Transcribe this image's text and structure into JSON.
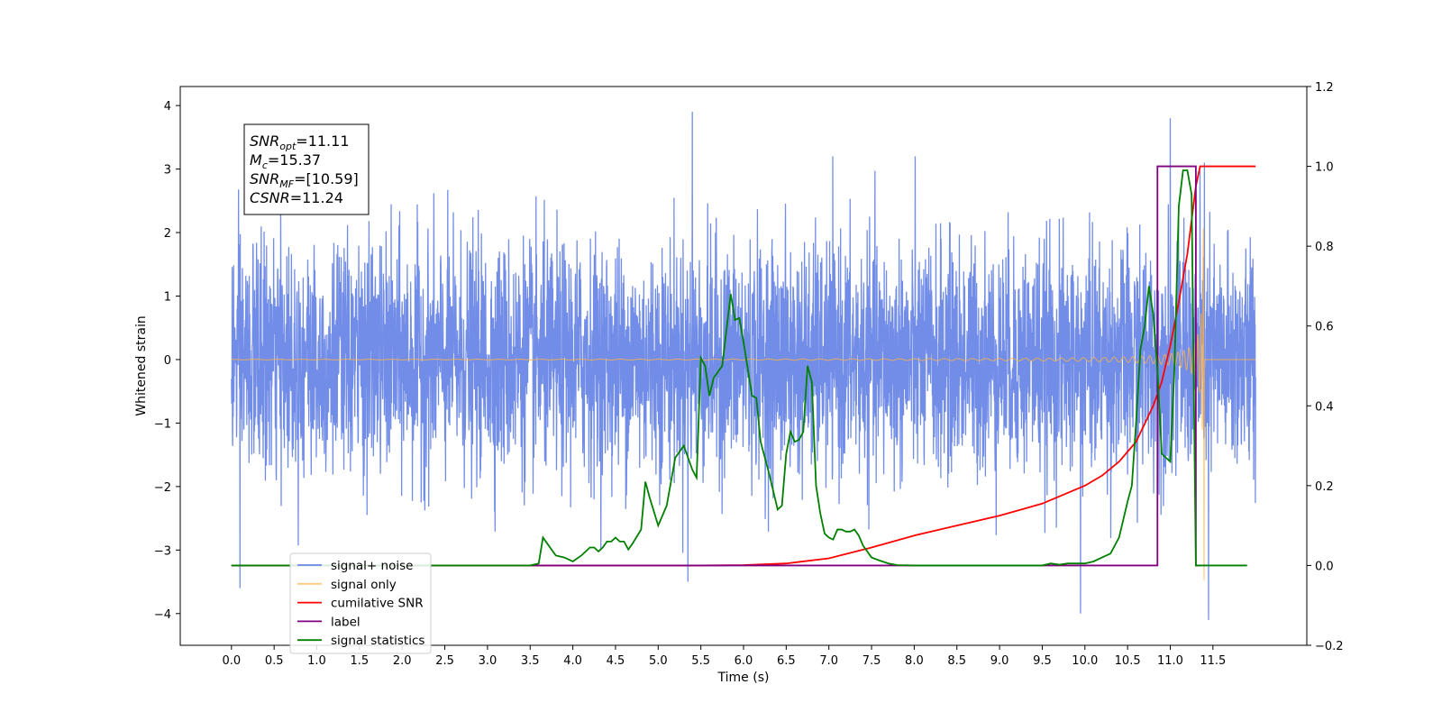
{
  "chart_data": {
    "type": "line",
    "xlabel": "Time (s)",
    "ylabel": "Whitened strain",
    "xlim": [
      -0.6,
      12.6
    ],
    "ylim": [
      -4.5,
      4.3
    ],
    "ylim_right": [
      -0.2,
      1.2
    ],
    "x_ticks": [
      "0.0",
      "0.5",
      "1.0",
      "1.5",
      "2.0",
      "2.5",
      "3.0",
      "3.5",
      "4.0",
      "4.5",
      "5.0",
      "5.5",
      "6.0",
      "6.5",
      "7.0",
      "7.5",
      "8.0",
      "8.5",
      "9.0",
      "9.5",
      "10.0",
      "10.5",
      "11.0",
      "11.5"
    ],
    "y_ticks_left": [
      "4",
      "3",
      "2",
      "1",
      "0",
      "−1",
      "−2",
      "−3",
      "−4"
    ],
    "y_ticks_right": [
      "1.2",
      "1.0",
      "0.8",
      "0.6",
      "0.4",
      "0.2",
      "0.0",
      "−0.2"
    ],
    "grid": false,
    "legend_placement": "lower-left",
    "annotation": [
      {
        "base": "SNR",
        "sub": "opt",
        "value": "=11.11"
      },
      {
        "base": "M",
        "sub": "c",
        "value": "=15.37"
      },
      {
        "base": "SNR",
        "sub": "MF",
        "value": "=[10.59]"
      },
      {
        "base": "CSNR",
        "sub": "",
        "value": "=11.24"
      }
    ],
    "series": [
      {
        "name": "signal+ noise",
        "axis": "left",
        "color": "#6a87e6",
        "style": "noise",
        "x_range": [
          0,
          12.0
        ],
        "std": 0.9,
        "notable_peaks": [
          [
            5.4,
            3.9
          ],
          [
            11.0,
            3.8
          ],
          [
            11.4,
            3.1
          ],
          [
            11.45,
            -4.1
          ],
          [
            9.95,
            -4.0
          ],
          [
            0.1,
            -3.6
          ],
          [
            5.35,
            -3.5
          ]
        ]
      },
      {
        "name": "signal only",
        "axis": "left",
        "color": "#ffb347",
        "style": "chirp",
        "x_range": [
          0,
          12.0
        ],
        "t_merger": 11.4
      },
      {
        "name": "cumilative SNR",
        "axis": "right",
        "color": "#ff0000",
        "x": [
          0,
          5.5,
          6.0,
          6.5,
          7.0,
          7.5,
          8.0,
          8.5,
          9.0,
          9.5,
          10.0,
          10.2,
          10.4,
          10.6,
          10.8,
          10.9,
          11.0,
          11.1,
          11.2,
          11.3,
          11.35,
          12.0
        ],
        "y": [
          0.0,
          0.0,
          0.001,
          0.005,
          0.018,
          0.045,
          0.075,
          0.1,
          0.125,
          0.155,
          0.2,
          0.225,
          0.26,
          0.31,
          0.4,
          0.46,
          0.55,
          0.66,
          0.78,
          0.95,
          1.0,
          1.0
        ]
      },
      {
        "name": "label",
        "axis": "right",
        "color": "#800080",
        "x": [
          0,
          10.85,
          10.85,
          11.3,
          11.3,
          11.35
        ],
        "y": [
          0,
          0,
          1,
          1,
          0,
          0
        ]
      },
      {
        "name": "signal statistics",
        "axis": "right",
        "color": "#008000",
        "x": [
          0,
          3.5,
          3.6,
          3.65,
          3.7,
          3.8,
          3.9,
          4.0,
          4.1,
          4.2,
          4.25,
          4.3,
          4.35,
          4.4,
          4.45,
          4.5,
          4.55,
          4.6,
          4.65,
          4.7,
          4.8,
          4.85,
          4.9,
          5.0,
          5.1,
          5.2,
          5.3,
          5.4,
          5.45,
          5.5,
          5.55,
          5.6,
          5.65,
          5.7,
          5.75,
          5.8,
          5.85,
          5.9,
          5.95,
          6.0,
          6.1,
          6.15,
          6.2,
          6.3,
          6.4,
          6.45,
          6.5,
          6.55,
          6.6,
          6.65,
          6.7,
          6.75,
          6.8,
          6.85,
          6.9,
          6.95,
          7.0,
          7.05,
          7.1,
          7.15,
          7.2,
          7.25,
          7.3,
          7.35,
          7.4,
          7.5,
          7.6,
          7.7,
          7.8,
          8.0,
          9.5,
          9.6,
          9.7,
          9.8,
          9.9,
          10.0,
          10.1,
          10.2,
          10.3,
          10.4,
          10.5,
          10.55,
          10.6,
          10.65,
          10.7,
          10.75,
          10.8,
          10.85,
          10.9,
          10.95,
          11.0,
          11.05,
          11.1,
          11.15,
          11.2,
          11.25,
          11.3,
          11.35,
          11.4,
          11.5,
          11.9
        ],
        "y": [
          0,
          0,
          0.005,
          0.07,
          0.055,
          0.025,
          0.02,
          0.01,
          0.025,
          0.045,
          0.045,
          0.035,
          0.045,
          0.06,
          0.06,
          0.07,
          0.06,
          0.06,
          0.04,
          0.055,
          0.09,
          0.21,
          0.17,
          0.1,
          0.15,
          0.27,
          0.3,
          0.24,
          0.22,
          0.52,
          0.5,
          0.425,
          0.47,
          0.485,
          0.5,
          0.59,
          0.68,
          0.615,
          0.62,
          0.56,
          0.425,
          0.42,
          0.31,
          0.23,
          0.14,
          0.15,
          0.28,
          0.335,
          0.31,
          0.315,
          0.335,
          0.5,
          0.46,
          0.2,
          0.13,
          0.08,
          0.07,
          0.065,
          0.09,
          0.09,
          0.085,
          0.085,
          0.09,
          0.075,
          0.05,
          0.02,
          0.012,
          0.005,
          0.001,
          0.0,
          0.0,
          0.005,
          0.002,
          0.005,
          0.005,
          0.005,
          0.01,
          0.02,
          0.03,
          0.07,
          0.16,
          0.2,
          0.36,
          0.54,
          0.6,
          0.7,
          0.63,
          0.49,
          0.28,
          0.27,
          0.26,
          0.5,
          0.9,
          0.99,
          0.99,
          0.93,
          0.0,
          0.0,
          0.0,
          0.0,
          0.0
        ]
      }
    ]
  }
}
